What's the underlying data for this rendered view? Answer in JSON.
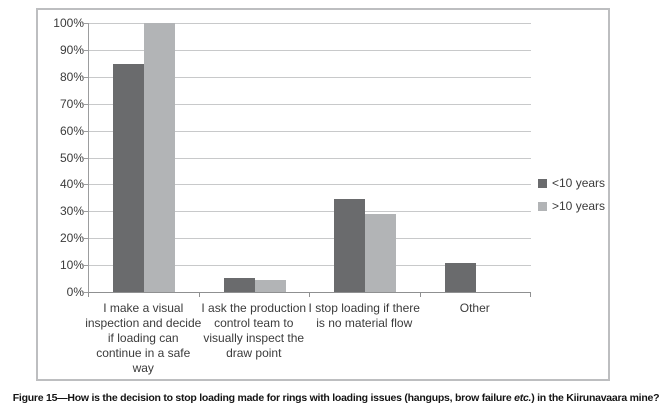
{
  "figure": {
    "caption_prefix": "Figure 15—How is the decision to stop loading made for rings with loading issues (hangups, brow failure ",
    "caption_italic": "etc.",
    "caption_suffix": ") in the Kiirunavaara mine?"
  },
  "chart_data": {
    "type": "bar",
    "title": "",
    "xlabel": "",
    "ylabel": "",
    "ylim": [
      0,
      100
    ],
    "ytick_step": 10,
    "ytick_labels": [
      "0%",
      "10%",
      "20%",
      "30%",
      "40%",
      "50%",
      "60%",
      "70%",
      "80%",
      "90%",
      "100%"
    ],
    "grid": true,
    "legend_position": "right",
    "categories": [
      "I make a visual inspection and decide if loading can continue in a safe way",
      "I ask the production control team to visually inspect the draw point",
      "I stop loading if there is no material flow",
      "Other"
    ],
    "xtick_lines": [
      [
        "I make a visual",
        "inspection and decide",
        "if loading can",
        "continue in a safe",
        "way"
      ],
      [
        "I ask the production",
        "control team to",
        "visually inspect the",
        "draw point"
      ],
      [
        "I stop loading if there",
        "is no material flow"
      ],
      [
        "Other"
      ]
    ],
    "series": [
      {
        "name": "<10 years",
        "color": "#6a6b6d",
        "values": [
          84.6,
          5.2,
          34.6,
          10.7
        ]
      },
      {
        "name": ">10 years",
        "color": "#b2b4b6",
        "values": [
          100,
          4.5,
          29.0,
          0
        ]
      }
    ],
    "colors": {
      "gridline": "#c8c9ca",
      "axis": "#9c9d9e",
      "panel_border": "#bdbec0",
      "text": "#3b3b3b"
    }
  }
}
